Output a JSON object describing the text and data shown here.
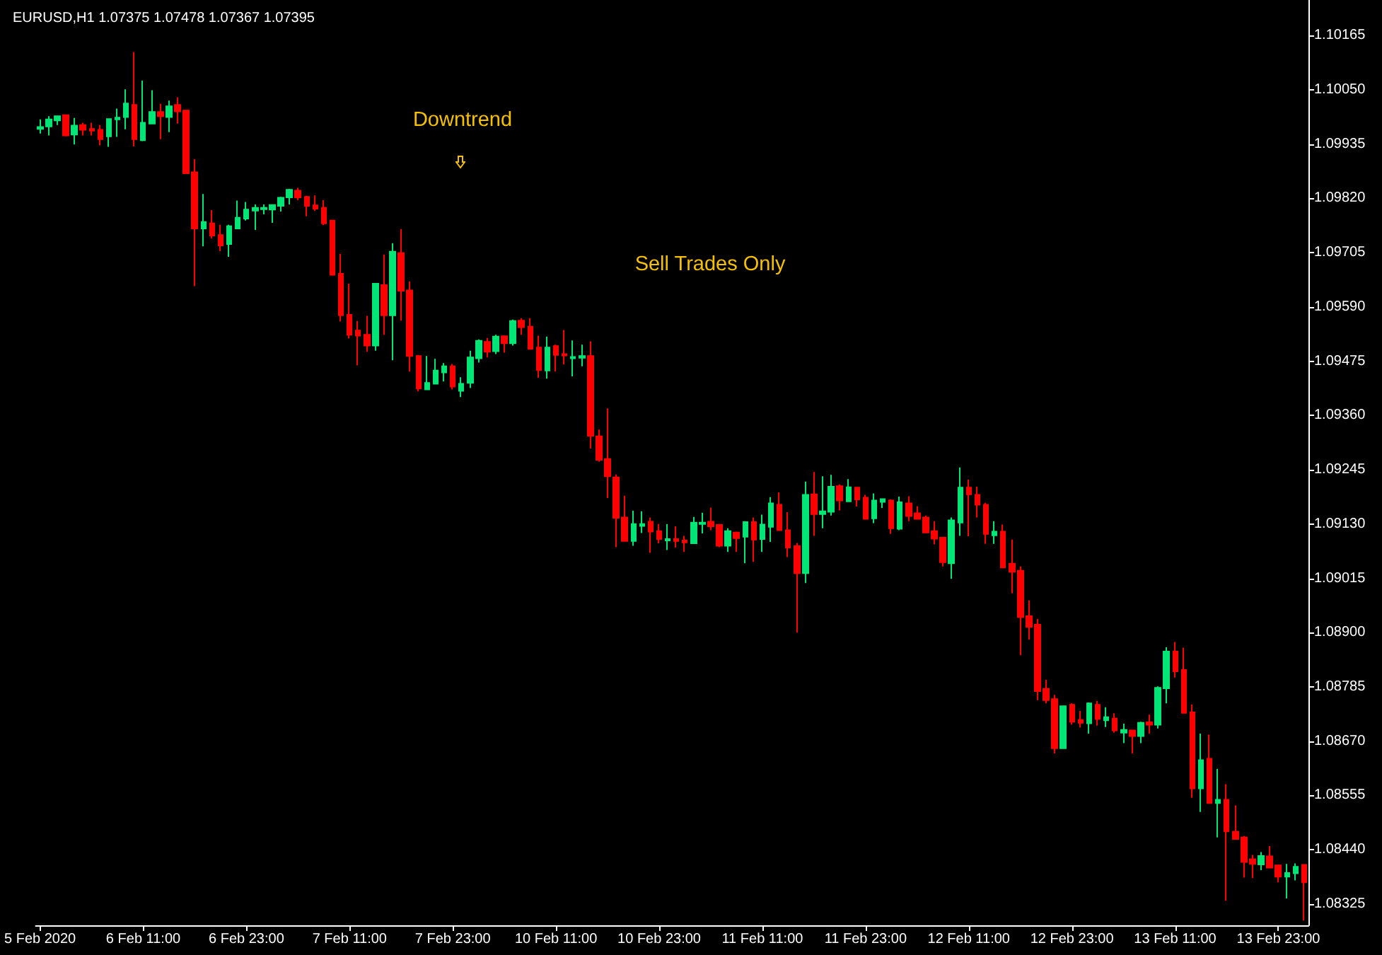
{
  "chart_data": {
    "type": "candlestick",
    "title": "EURUSD,H1 1.07375 1.07478 1.07367 1.07395",
    "annotations": [
      "Downtrend",
      "Sell Trades Only"
    ],
    "categories": [
      "5 Feb 2020",
      null,
      null,
      null,
      null,
      null,
      null,
      null,
      null,
      null,
      null,
      null,
      "6 Feb 11:00",
      null,
      null,
      null,
      null,
      null,
      null,
      null,
      null,
      null,
      null,
      null,
      "6 Feb 23:00",
      null,
      null,
      null,
      null,
      null,
      null,
      null,
      null,
      null,
      null,
      null,
      "7 Feb 11:00",
      null,
      null,
      null,
      null,
      null,
      null,
      null,
      null,
      null,
      null,
      null,
      "7 Feb 23:00",
      null,
      null,
      null,
      null,
      null,
      null,
      null,
      null,
      null,
      null,
      null,
      "10 Feb 11:00",
      null,
      null,
      null,
      null,
      null,
      null,
      null,
      null,
      null,
      null,
      null,
      "10 Feb 23:00",
      null,
      null,
      null,
      null,
      null,
      null,
      null,
      null,
      null,
      null,
      null,
      "11 Feb 11:00",
      null,
      null,
      null,
      null,
      null,
      null,
      null,
      null,
      null,
      null,
      null,
      "11 Feb 23:00",
      null,
      null,
      null,
      null,
      null,
      null,
      null,
      null,
      null,
      null,
      null,
      "12 Feb 11:00",
      null,
      null,
      null,
      null,
      null,
      null,
      null,
      null,
      null,
      null,
      null,
      "12 Feb 23:00",
      null,
      null,
      null,
      null,
      null,
      null,
      null,
      null,
      null,
      null,
      null,
      "13 Feb 11:00",
      null,
      null,
      null,
      null,
      null,
      null,
      null,
      null,
      null,
      null,
      null,
      "13 Feb 23:00",
      null,
      null,
      null
    ],
    "ohlc": [
      [
        1.09967,
        1.09987,
        1.09957,
        1.09971
      ],
      [
        1.09972,
        1.09994,
        1.09953,
        1.09987
      ],
      [
        1.09985,
        1.09994,
        1.09975,
        1.09994
      ],
      [
        1.09996,
        1.09997,
        1.09951,
        1.09953
      ],
      [
        1.09955,
        1.0999,
        1.09934,
        1.09974
      ],
      [
        1.09975,
        1.0998,
        1.09953,
        1.09965
      ],
      [
        1.09967,
        1.0998,
        1.09953,
        1.09963
      ],
      [
        1.09965,
        1.09975,
        1.09932,
        1.09945
      ],
      [
        1.09951,
        1.09988,
        1.09929,
        1.09988
      ],
      [
        1.09987,
        1.1001,
        1.0995,
        1.09991
      ],
      [
        1.09992,
        1.10051,
        1.09966,
        1.10021
      ],
      [
        1.10018,
        1.1013,
        1.0993,
        1.09945
      ],
      [
        1.09943,
        1.10069,
        1.09941,
        1.0998
      ],
      [
        1.09978,
        1.10049,
        1.09977,
        1.10003
      ],
      [
        1.10003,
        1.1002,
        1.09945,
        1.09994
      ],
      [
        1.09992,
        1.10027,
        1.0996,
        1.10015
      ],
      [
        1.10018,
        1.10034,
        1.09978,
        1.10004
      ],
      [
        1.10006,
        1.10006,
        1.09873,
        1.09873
      ],
      [
        1.09875,
        1.09903,
        1.09634,
        1.09756
      ],
      [
        1.09756,
        1.09829,
        1.09718,
        1.0977
      ],
      [
        1.09767,
        1.09795,
        1.09735,
        1.09741
      ],
      [
        1.09742,
        1.09764,
        1.09708,
        1.0972
      ],
      [
        1.09723,
        1.09764,
        1.09696,
        1.09761
      ],
      [
        1.09756,
        1.09815,
        1.09756,
        1.09779
      ],
      [
        1.09777,
        1.09812,
        1.09773,
        1.09796
      ],
      [
        1.09794,
        1.09807,
        1.09753,
        1.098
      ],
      [
        1.09797,
        1.09807,
        1.09786,
        1.098
      ],
      [
        1.09796,
        1.09807,
        1.09768,
        1.09806
      ],
      [
        1.09804,
        1.09823,
        1.09792,
        1.09821
      ],
      [
        1.09822,
        1.0984,
        1.09807,
        1.09838
      ],
      [
        1.09836,
        1.09842,
        1.09816,
        1.09822
      ],
      [
        1.09823,
        1.09825,
        1.09782,
        1.09804
      ],
      [
        1.09805,
        1.09826,
        1.09793,
        1.09798
      ],
      [
        1.098,
        1.09816,
        1.09763,
        1.09767
      ],
      [
        1.09773,
        1.09774,
        1.09657,
        1.09658
      ],
      [
        1.0966,
        1.09702,
        1.09559,
        1.09572
      ],
      [
        1.09573,
        1.09639,
        1.09523,
        1.09531
      ],
      [
        1.0954,
        1.0956,
        1.09466,
        1.09529
      ],
      [
        1.09531,
        1.09571,
        1.09495,
        1.09508
      ],
      [
        1.09508,
        1.09639,
        1.09497,
        1.09639
      ],
      [
        1.09636,
        1.09701,
        1.09531,
        1.09572
      ],
      [
        1.09572,
        1.09725,
        1.09477,
        1.09707
      ],
      [
        1.09704,
        1.09755,
        1.09561,
        1.09624
      ],
      [
        1.09625,
        1.09644,
        1.09453,
        1.09486
      ],
      [
        1.09486,
        1.09488,
        1.09411,
        1.09417
      ],
      [
        1.09415,
        1.09486,
        1.09415,
        1.09429
      ],
      [
        1.09427,
        1.0948,
        1.09427,
        1.09455
      ],
      [
        1.09451,
        1.09471,
        1.09432,
        1.09464
      ],
      [
        1.09464,
        1.09469,
        1.09415,
        1.09421
      ],
      [
        1.09412,
        1.09441,
        1.09399,
        1.09427
      ],
      [
        1.09429,
        1.09497,
        1.09418,
        1.09483
      ],
      [
        1.09481,
        1.09521,
        1.09472,
        1.09518
      ],
      [
        1.09516,
        1.09524,
        1.09483,
        1.09495
      ],
      [
        1.09496,
        1.09531,
        1.0949,
        1.09527
      ],
      [
        1.09528,
        1.09528,
        1.09493,
        1.09513
      ],
      [
        1.09513,
        1.09563,
        1.09508,
        1.0956
      ],
      [
        1.09561,
        1.09566,
        1.09531,
        1.09547
      ],
      [
        1.09548,
        1.09566,
        1.09501,
        1.09501
      ],
      [
        1.09504,
        1.09529,
        1.0944,
        1.09456
      ],
      [
        1.09455,
        1.09527,
        1.09438,
        1.09504
      ],
      [
        1.09507,
        1.0951,
        1.09453,
        1.09488
      ],
      [
        1.0949,
        1.09541,
        1.09468,
        1.09487
      ],
      [
        1.09481,
        1.09519,
        1.09443,
        1.09484
      ],
      [
        1.09482,
        1.0951,
        1.09464,
        1.09486
      ],
      [
        1.09486,
        1.09517,
        1.0929,
        1.09317
      ],
      [
        1.09316,
        1.0933,
        1.09262,
        1.09266
      ],
      [
        1.09268,
        1.09375,
        1.09185,
        1.09231
      ],
      [
        1.09229,
        1.09235,
        1.09081,
        1.09143
      ],
      [
        1.09144,
        1.0919,
        1.09094,
        1.09094
      ],
      [
        1.09094,
        1.09158,
        1.09084,
        1.0913
      ],
      [
        1.09126,
        1.09157,
        1.09111,
        1.0913
      ],
      [
        1.09135,
        1.09144,
        1.09069,
        1.09114
      ],
      [
        1.09115,
        1.0913,
        1.09089,
        1.09098
      ],
      [
        1.09095,
        1.0913,
        1.09075,
        1.09098
      ],
      [
        1.09098,
        1.09125,
        1.0908,
        1.09094
      ],
      [
        1.09095,
        1.09105,
        1.09071,
        1.09091
      ],
      [
        1.09089,
        1.09145,
        1.09089,
        1.09133
      ],
      [
        1.0913,
        1.09154,
        1.0911,
        1.09133
      ],
      [
        1.09135,
        1.09165,
        1.09117,
        1.09125
      ],
      [
        1.09128,
        1.0913,
        1.09081,
        1.09084
      ],
      [
        1.09084,
        1.09121,
        1.09071,
        1.09115
      ],
      [
        1.09112,
        1.09114,
        1.09071,
        1.091
      ],
      [
        1.09103,
        1.09136,
        1.09047,
        1.09134
      ],
      [
        1.09134,
        1.09144,
        1.0905,
        1.09097
      ],
      [
        1.09098,
        1.0915,
        1.09071,
        1.09129
      ],
      [
        1.09124,
        1.09187,
        1.09092,
        1.09174
      ],
      [
        1.09171,
        1.09197,
        1.09116,
        1.09117
      ],
      [
        1.09117,
        1.09155,
        1.0906,
        1.0908
      ],
      [
        1.09083,
        1.0909,
        1.089,
        1.09026
      ],
      [
        1.09026,
        1.0922,
        1.09005,
        1.09192
      ],
      [
        1.09193,
        1.0924,
        1.09105,
        1.09151
      ],
      [
        1.09151,
        1.09231,
        1.09121,
        1.09157
      ],
      [
        1.09156,
        1.09234,
        1.09148,
        1.09209
      ],
      [
        1.0921,
        1.09214,
        1.09159,
        1.0918
      ],
      [
        1.09178,
        1.09225,
        1.09178,
        1.09208
      ],
      [
        1.09207,
        1.09207,
        1.09167,
        1.09182
      ],
      [
        1.09186,
        1.09192,
        1.09141,
        1.09141
      ],
      [
        1.09142,
        1.09195,
        1.09132,
        1.0918
      ],
      [
        1.09177,
        1.09183,
        1.09164,
        1.09183
      ],
      [
        1.0918,
        1.09182,
        1.09109,
        1.09121
      ],
      [
        1.0912,
        1.09188,
        1.09117,
        1.09176
      ],
      [
        1.09174,
        1.09189,
        1.09136,
        1.09147
      ],
      [
        1.09153,
        1.09168,
        1.09141,
        1.09141
      ],
      [
        1.09144,
        1.09148,
        1.09111,
        1.09112
      ],
      [
        1.09115,
        1.09136,
        1.09087,
        1.09099
      ],
      [
        1.09101,
        1.09102,
        1.0904,
        1.09049
      ],
      [
        1.09047,
        1.09144,
        1.09014,
        1.09138
      ],
      [
        1.09133,
        1.0925,
        1.09105,
        1.09207
      ],
      [
        1.09207,
        1.09224,
        1.09104,
        1.09193
      ],
      [
        1.09192,
        1.09209,
        1.09144,
        1.09171
      ],
      [
        1.09171,
        1.09175,
        1.09088,
        1.09109
      ],
      [
        1.09106,
        1.09136,
        1.09088,
        1.09114
      ],
      [
        1.09114,
        1.09129,
        1.09038,
        1.09038
      ],
      [
        1.09046,
        1.09097,
        1.08983,
        1.09029
      ],
      [
        1.09031,
        1.0904,
        1.08852,
        1.08933
      ],
      [
        1.08935,
        1.08968,
        1.08885,
        1.08912
      ],
      [
        1.08917,
        1.08929,
        1.08757,
        1.08776
      ],
      [
        1.08781,
        1.088,
        1.0875,
        1.08757
      ],
      [
        1.08759,
        1.08768,
        1.08644,
        1.08655
      ],
      [
        1.08655,
        1.08744,
        1.08655,
        1.08744
      ],
      [
        1.08747,
        1.0875,
        1.08705,
        1.08711
      ],
      [
        1.08715,
        1.08734,
        1.08699,
        1.08709
      ],
      [
        1.08708,
        1.08752,
        1.08686,
        1.0875
      ],
      [
        1.08747,
        1.08755,
        1.08703,
        1.08717
      ],
      [
        1.08714,
        1.08742,
        1.087,
        1.08721
      ],
      [
        1.08718,
        1.08729,
        1.08688,
        1.08693
      ],
      [
        1.08688,
        1.08707,
        1.08666,
        1.08694
      ],
      [
        1.08693,
        1.08693,
        1.08644,
        1.08681
      ],
      [
        1.08681,
        1.08711,
        1.08666,
        1.08709
      ],
      [
        1.0871,
        1.08726,
        1.08686,
        1.08705
      ],
      [
        1.08705,
        1.08786,
        1.08697,
        1.08783
      ],
      [
        1.08782,
        1.08869,
        1.0875,
        1.0886
      ],
      [
        1.0886,
        1.0888,
        1.08805,
        1.08818
      ],
      [
        1.08821,
        1.08868,
        1.0873,
        1.0873
      ],
      [
        1.08731,
        1.08748,
        1.0855,
        1.0857
      ],
      [
        1.0857,
        1.08686,
        1.0852,
        1.0863
      ],
      [
        1.08633,
        1.08684,
        1.08539,
        1.08539
      ],
      [
        1.08539,
        1.08611,
        1.08466,
        1.08546
      ],
      [
        1.08546,
        1.08579,
        1.08332,
        1.08479
      ],
      [
        1.08478,
        1.08534,
        1.08463,
        1.08463
      ],
      [
        1.08466,
        1.08469,
        1.08381,
        1.08414
      ],
      [
        1.0842,
        1.08429,
        1.0838,
        1.0841
      ],
      [
        1.08409,
        1.08435,
        1.08397,
        1.08427
      ],
      [
        1.08426,
        1.08448,
        1.08402,
        1.08402
      ],
      [
        1.08407,
        1.08407,
        1.08371,
        1.08383
      ],
      [
        1.08383,
        1.0841,
        1.08337,
        1.08391
      ],
      [
        1.0839,
        1.08411,
        1.08375,
        1.08404
      ],
      [
        1.08408,
        1.08408,
        1.0829,
        1.08371
      ]
    ],
    "colors": [
      "#00e676",
      "#00e676",
      "#00e676",
      "#ff0000",
      "#00e676",
      "#ff0000",
      "#ff0000",
      "#ff0000",
      "#00e676",
      "#00e676",
      "#00e676",
      "#ff0000",
      "#00e676",
      "#00e676",
      "#ff0000",
      "#00e676",
      "#ff0000",
      "#ff0000",
      "#ff0000",
      "#00e676",
      "#ff0000",
      "#ff0000",
      "#00e676",
      "#00e676",
      "#00e676",
      "#00e676",
      "#00e676",
      "#00e676",
      "#00e676",
      "#00e676",
      "#ff0000",
      "#ff0000",
      "#ff0000",
      "#ff0000",
      "#ff0000",
      "#ff0000",
      "#ff0000",
      "#ff0000",
      "#ff0000",
      "#00e676",
      "#ff0000",
      "#00e676",
      "#ff0000",
      "#ff0000",
      "#ff0000",
      "#00e676",
      "#00e676",
      "#00e676",
      "#ff0000",
      "#00e676",
      "#00e676",
      "#00e676",
      "#ff0000",
      "#00e676",
      "#ff0000",
      "#00e676",
      "#ff0000",
      "#ff0000",
      "#ff0000",
      "#00e676",
      "#ff0000",
      "#ff0000",
      "#00e676",
      "#00e676",
      "#ff0000",
      "#ff0000",
      "#ff0000",
      "#ff0000",
      "#ff0000",
      "#00e676",
      "#00e676",
      "#ff0000",
      "#ff0000",
      "#00e676",
      "#ff0000",
      "#ff0000",
      "#00e676",
      "#00e676",
      "#ff0000",
      "#ff0000",
      "#00e676",
      "#ff0000",
      "#00e676",
      "#ff0000",
      "#00e676",
      "#00e676",
      "#ff0000",
      "#ff0000",
      "#ff0000",
      "#00e676",
      "#ff0000",
      "#00e676",
      "#00e676",
      "#ff0000",
      "#00e676",
      "#ff0000",
      "#ff0000",
      "#00e676",
      "#00e676",
      "#ff0000",
      "#00e676",
      "#ff0000",
      "#ff0000",
      "#ff0000",
      "#ff0000",
      "#ff0000",
      "#00e676",
      "#00e676",
      "#ff0000",
      "#ff0000",
      "#ff0000",
      "#00e676",
      "#ff0000",
      "#ff0000",
      "#ff0000",
      "#ff0000",
      "#ff0000",
      "#ff0000",
      "#ff0000",
      "#00e676",
      "#ff0000",
      "#ff0000",
      "#00e676",
      "#ff0000",
      "#00e676",
      "#ff0000",
      "#00e676",
      "#ff0000",
      "#00e676",
      "#ff0000",
      "#00e676",
      "#00e676",
      "#ff0000",
      "#ff0000",
      "#ff0000",
      "#00e676",
      "#ff0000",
      "#00e676",
      "#ff0000",
      "#ff0000",
      "#ff0000",
      "#ff0000",
      "#00e676",
      "#ff0000",
      "#ff0000",
      "#00e676",
      "#00e676",
      "#ff0000"
    ],
    "ylim": [
      1.0828,
      1.1024
    ],
    "yticks": [
      1.10165,
      {
        "value": 1.1005,
        "label": "1.10050"
      },
      1.09935,
      {
        "value": 1.0982,
        "label": "1.09820"
      },
      1.09705,
      {
        "value": 1.0959,
        "label": "1.09590"
      },
      1.09475,
      {
        "value": 1.0936,
        "label": "1.09360"
      },
      1.09245,
      {
        "value": 1.0913,
        "label": "1.09130"
      },
      1.09015,
      {
        "value": 1.089,
        "label": "1.08900"
      },
      1.08785,
      {
        "value": 1.0867,
        "label": "1.08670"
      },
      1.08555,
      {
        "value": 1.0844,
        "label": "1.08440"
      },
      1.08325
    ]
  }
}
